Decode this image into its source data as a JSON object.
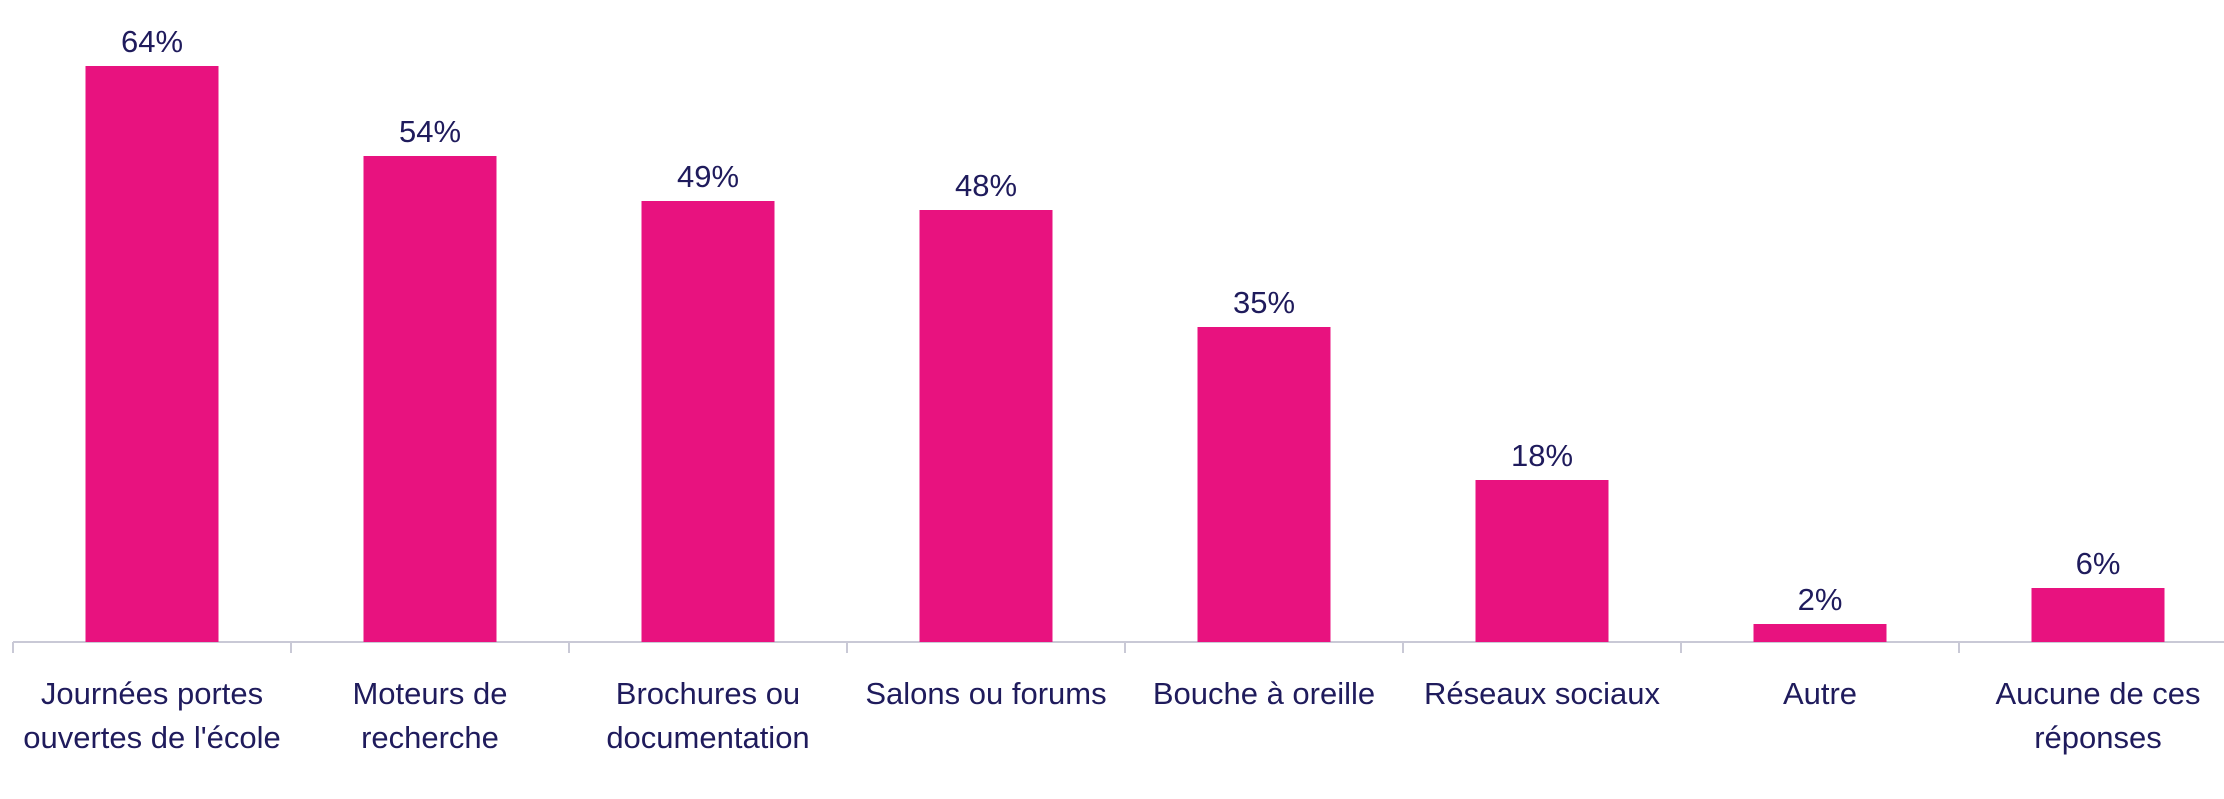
{
  "chart_data": {
    "type": "bar",
    "categories": [
      "Journées portes ouvertes de l'école",
      "Moteurs de recherche",
      "Brochures ou documentation",
      "Salons ou forums",
      "Bouche à oreille",
      "Réseaux sociaux",
      "Autre",
      "Aucune de ces réponses"
    ],
    "values": [
      64,
      54,
      49,
      48,
      35,
      18,
      2,
      6
    ],
    "value_labels": [
      "64%",
      "54%",
      "49%",
      "48%",
      "35%",
      "18%",
      "2%",
      "6%"
    ],
    "color": "#e8127f"
  }
}
